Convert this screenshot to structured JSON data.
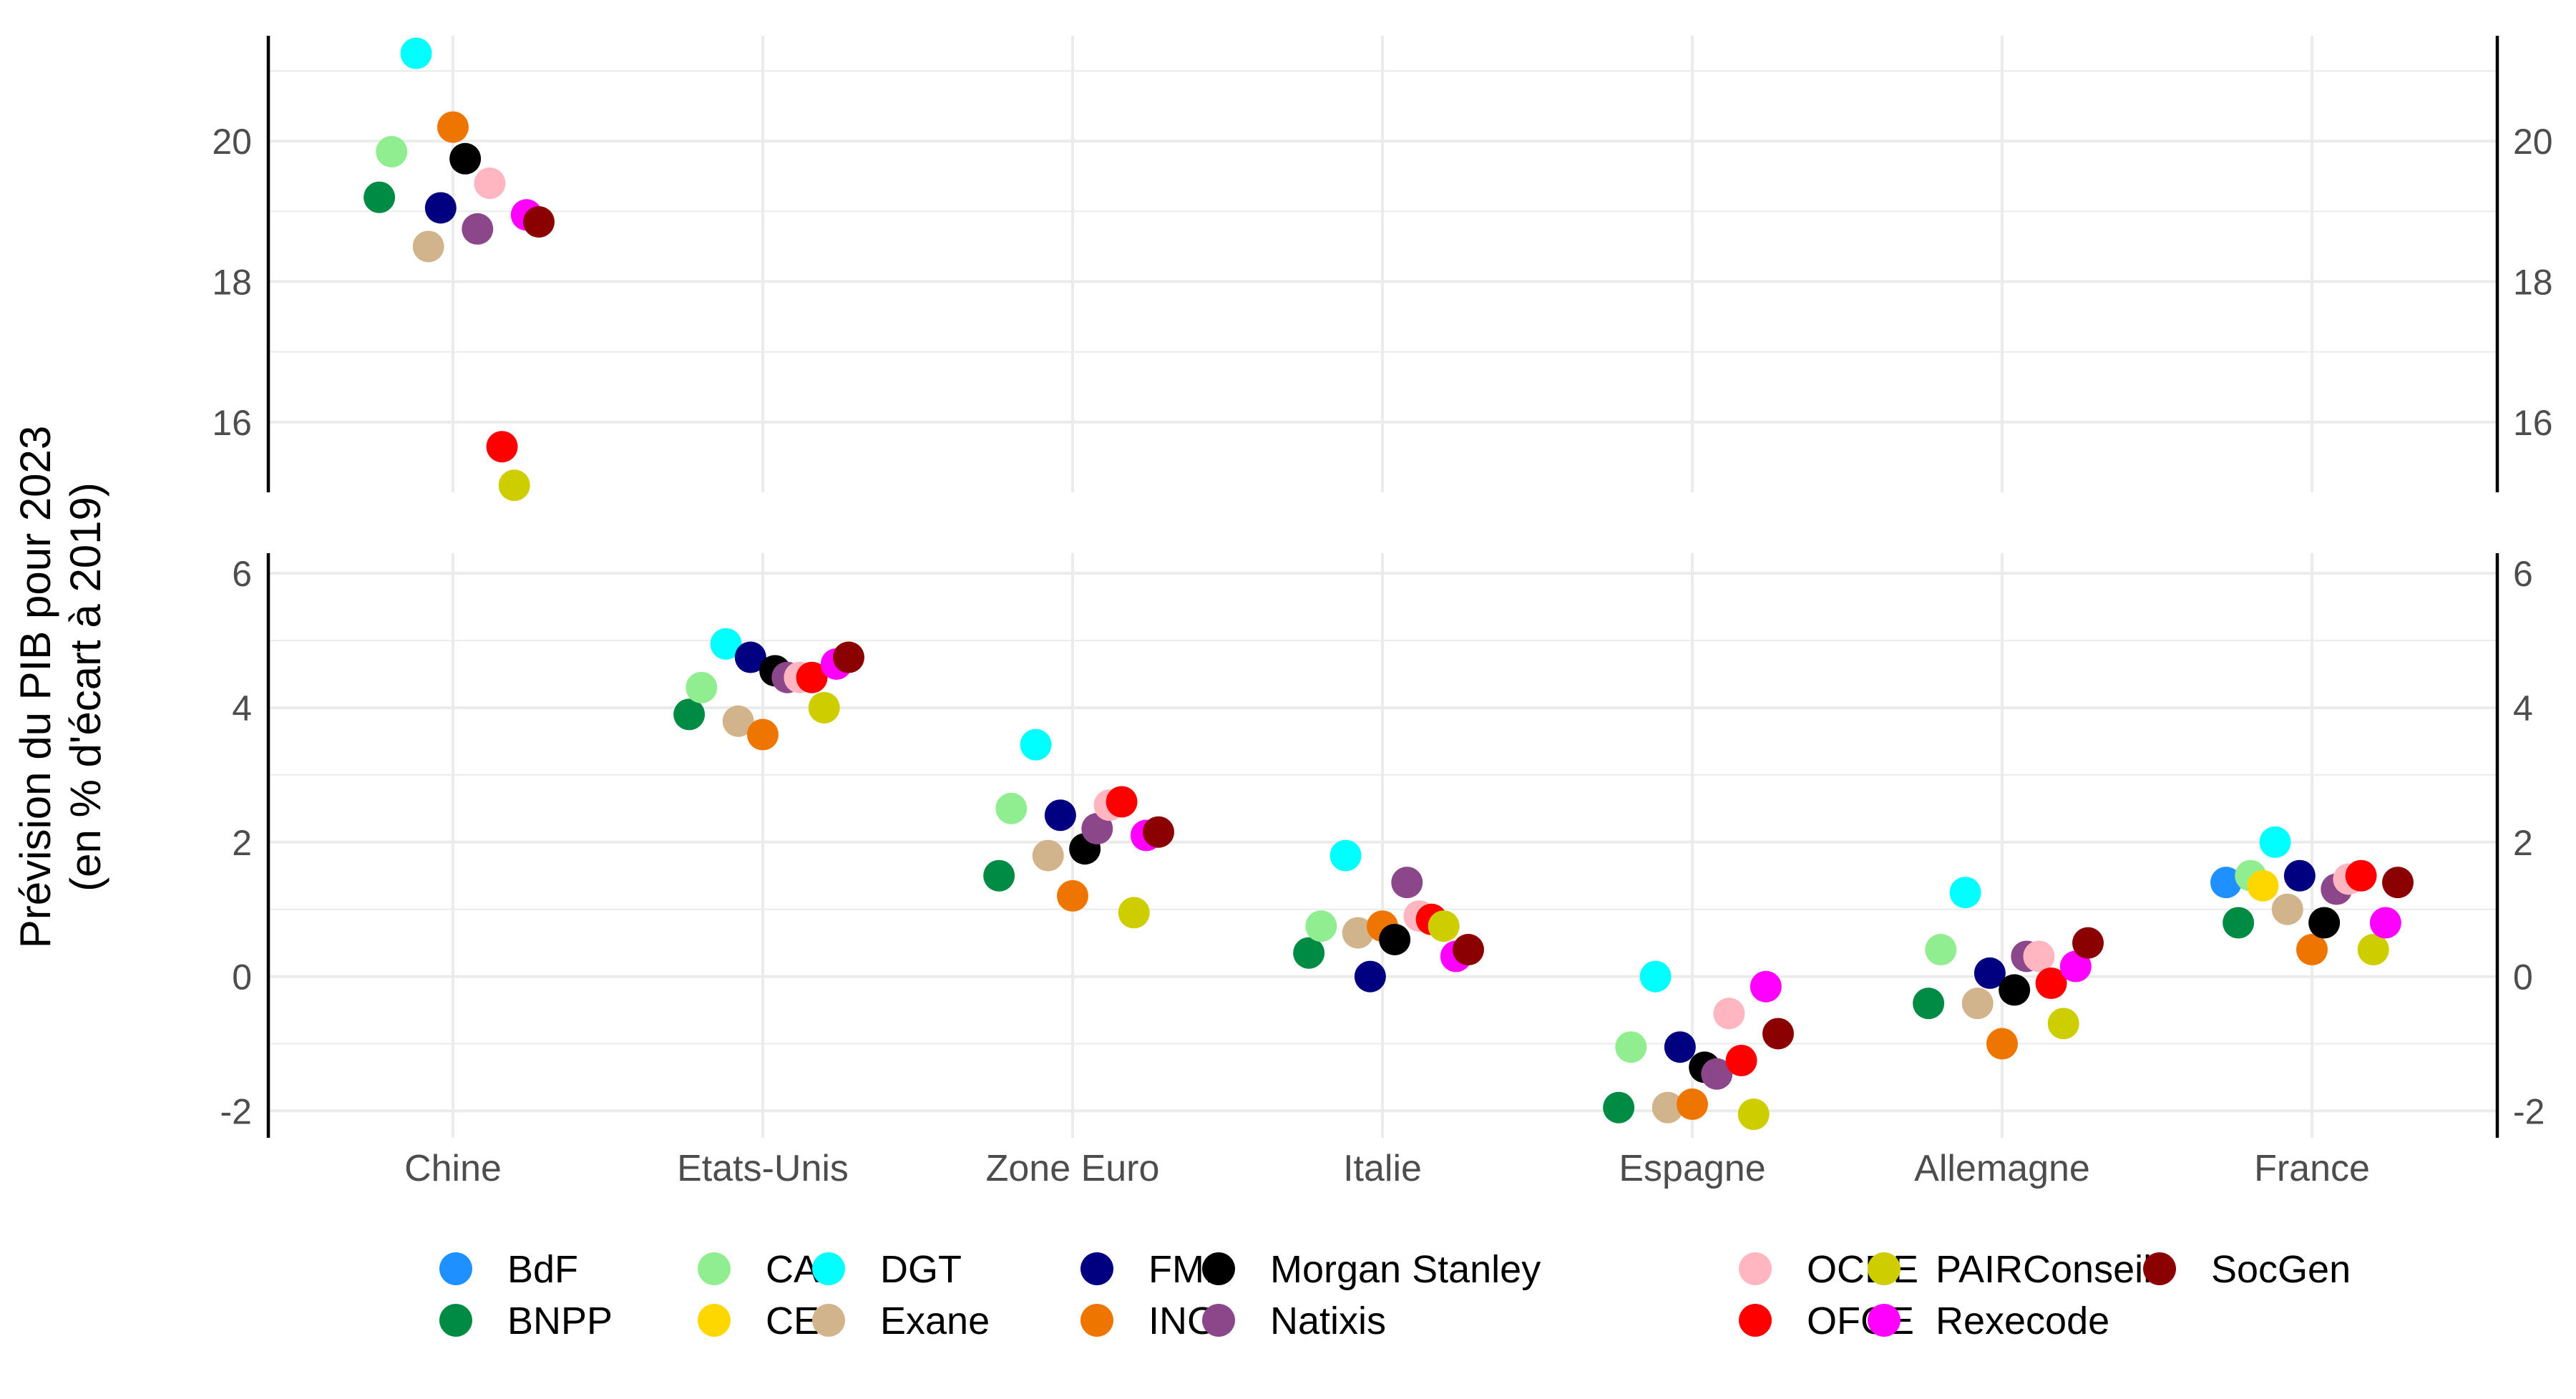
{
  "chart_data": {
    "type": "scatter",
    "ylabel_line1": "Prévision du PIB pour 2023",
    "ylabel_line2": "(en % d'écart à 2019)",
    "xlabel": "",
    "categories": [
      "Chine",
      "Etats-Unis",
      "Zone Euro",
      "Italie",
      "Espagne",
      "Allemagne",
      "France"
    ],
    "grid": true,
    "legend_position": "bottom",
    "panels": [
      {
        "name": "top",
        "ylim": [
          15.0,
          21.5
        ],
        "yticks": [
          16,
          18,
          20
        ]
      },
      {
        "name": "bottom",
        "ylim": [
          -2.4,
          6.3
        ],
        "yticks": [
          -2,
          0,
          2,
          4,
          6
        ]
      }
    ],
    "series": [
      {
        "name": "BdF",
        "color": "#1e90ff",
        "points": [
          {
            "category": "France",
            "y": 1.4
          }
        ]
      },
      {
        "name": "BNPP",
        "color": "#008b45",
        "points": [
          {
            "category": "Chine",
            "y": 19.2
          },
          {
            "category": "Etats-Unis",
            "y": 3.9
          },
          {
            "category": "Zone Euro",
            "y": 1.5
          },
          {
            "category": "Italie",
            "y": 0.35
          },
          {
            "category": "Espagne",
            "y": -1.95
          },
          {
            "category": "Allemagne",
            "y": -0.4
          },
          {
            "category": "France",
            "y": 0.8
          }
        ]
      },
      {
        "name": "CA",
        "color": "#90ee90",
        "points": [
          {
            "category": "Chine",
            "y": 19.85
          },
          {
            "category": "Etats-Unis",
            "y": 4.3
          },
          {
            "category": "Zone Euro",
            "y": 2.5
          },
          {
            "category": "Italie",
            "y": 0.75
          },
          {
            "category": "Espagne",
            "y": -1.05
          },
          {
            "category": "Allemagne",
            "y": 0.4
          },
          {
            "category": "France",
            "y": 1.5
          }
        ]
      },
      {
        "name": "CE",
        "color": "#ffd700",
        "points": [
          {
            "category": "France",
            "y": 1.35
          }
        ]
      },
      {
        "name": "DGT",
        "color": "#00ffff",
        "points": [
          {
            "category": "Chine",
            "y": 21.25
          },
          {
            "category": "Etats-Unis",
            "y": 4.95
          },
          {
            "category": "Zone Euro",
            "y": 3.45
          },
          {
            "category": "Italie",
            "y": 1.8
          },
          {
            "category": "Espagne",
            "y": 0.0
          },
          {
            "category": "Allemagne",
            "y": 1.25
          },
          {
            "category": "France",
            "y": 2.0
          }
        ]
      },
      {
        "name": "Exane",
        "color": "#d2b48c",
        "points": [
          {
            "category": "Chine",
            "y": 18.5
          },
          {
            "category": "Etats-Unis",
            "y": 3.8
          },
          {
            "category": "Zone Euro",
            "y": 1.8
          },
          {
            "category": "Italie",
            "y": 0.65
          },
          {
            "category": "Espagne",
            "y": -1.95
          },
          {
            "category": "Allemagne",
            "y": -0.4
          },
          {
            "category": "France",
            "y": 1.0
          }
        ]
      },
      {
        "name": "FMI",
        "color": "#000080",
        "points": [
          {
            "category": "Chine",
            "y": 19.05
          },
          {
            "category": "Etats-Unis",
            "y": 4.75
          },
          {
            "category": "Zone Euro",
            "y": 2.4
          },
          {
            "category": "Italie",
            "y": 0.0
          },
          {
            "category": "Espagne",
            "y": -1.05
          },
          {
            "category": "Allemagne",
            "y": 0.05
          },
          {
            "category": "France",
            "y": 1.5
          }
        ]
      },
      {
        "name": "ING",
        "color": "#ee7600",
        "points": [
          {
            "category": "Chine",
            "y": 20.2
          },
          {
            "category": "Etats-Unis",
            "y": 3.6
          },
          {
            "category": "Zone Euro",
            "y": 1.2
          },
          {
            "category": "Italie",
            "y": 0.75
          },
          {
            "category": "Espagne",
            "y": -1.9
          },
          {
            "category": "Allemagne",
            "y": -1.0
          },
          {
            "category": "France",
            "y": 0.4
          }
        ]
      },
      {
        "name": "Morgan Stanley",
        "color": "#000000",
        "points": [
          {
            "category": "Chine",
            "y": 19.75
          },
          {
            "category": "Etats-Unis",
            "y": 4.55
          },
          {
            "category": "Zone Euro",
            "y": 1.9
          },
          {
            "category": "Italie",
            "y": 0.55
          },
          {
            "category": "Espagne",
            "y": -1.35
          },
          {
            "category": "Allemagne",
            "y": -0.2
          },
          {
            "category": "France",
            "y": 0.8
          }
        ]
      },
      {
        "name": "Natixis",
        "color": "#8b4789",
        "points": [
          {
            "category": "Chine",
            "y": 18.75
          },
          {
            "category": "Etats-Unis",
            "y": 4.45
          },
          {
            "category": "Zone Euro",
            "y": 2.2
          },
          {
            "category": "Italie",
            "y": 1.4
          },
          {
            "category": "Espagne",
            "y": -1.45
          },
          {
            "category": "Allemagne",
            "y": 0.3
          },
          {
            "category": "France",
            "y": 1.3
          }
        ]
      },
      {
        "name": "OCDE",
        "color": "#ffb6c1",
        "points": [
          {
            "category": "Chine",
            "y": 19.4
          },
          {
            "category": "Etats-Unis",
            "y": 4.45
          },
          {
            "category": "Zone Euro",
            "y": 2.55
          },
          {
            "category": "Italie",
            "y": 0.9
          },
          {
            "category": "Espagne",
            "y": -0.55
          },
          {
            "category": "Allemagne",
            "y": 0.3
          },
          {
            "category": "France",
            "y": 1.45
          }
        ]
      },
      {
        "name": "OFCE",
        "color": "#ff0000",
        "points": [
          {
            "category": "Chine",
            "y": 15.65
          },
          {
            "category": "Etats-Unis",
            "y": 4.45
          },
          {
            "category": "Zone Euro",
            "y": 2.6
          },
          {
            "category": "Italie",
            "y": 0.85
          },
          {
            "category": "Espagne",
            "y": -1.25
          },
          {
            "category": "Allemagne",
            "y": -0.1
          },
          {
            "category": "France",
            "y": 1.5
          }
        ]
      },
      {
        "name": "PAIRConseil",
        "color": "#cdcd00",
        "points": [
          {
            "category": "Chine",
            "y": 15.1
          },
          {
            "category": "Etats-Unis",
            "y": 4.0
          },
          {
            "category": "Zone Euro",
            "y": 0.95
          },
          {
            "category": "Italie",
            "y": 0.75
          },
          {
            "category": "Espagne",
            "y": -2.05
          },
          {
            "category": "Allemagne",
            "y": -0.7
          },
          {
            "category": "France",
            "y": 0.4
          }
        ]
      },
      {
        "name": "Rexecode",
        "color": "#ff00ff",
        "points": [
          {
            "category": "Chine",
            "y": 18.95
          },
          {
            "category": "Etats-Unis",
            "y": 4.65
          },
          {
            "category": "Zone Euro",
            "y": 2.1
          },
          {
            "category": "Italie",
            "y": 0.3
          },
          {
            "category": "Espagne",
            "y": -0.15
          },
          {
            "category": "Allemagne",
            "y": 0.15
          },
          {
            "category": "France",
            "y": 0.8
          }
        ]
      },
      {
        "name": "SocGen",
        "color": "#8b0000",
        "points": [
          {
            "category": "Chine",
            "y": 18.85
          },
          {
            "category": "Etats-Unis",
            "y": 4.75
          },
          {
            "category": "Zone Euro",
            "y": 2.15
          },
          {
            "category": "Italie",
            "y": 0.4
          },
          {
            "category": "Espagne",
            "y": -0.85
          },
          {
            "category": "Allemagne",
            "y": 0.5
          },
          {
            "category": "France",
            "y": 1.4
          }
        ]
      }
    ]
  }
}
